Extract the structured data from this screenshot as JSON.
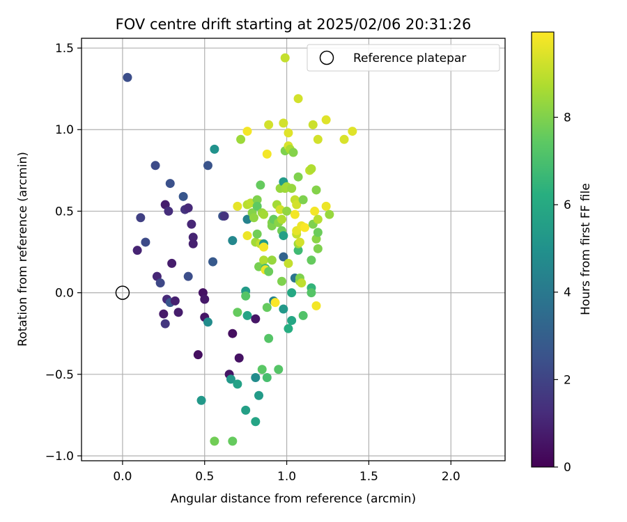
{
  "chart_data": {
    "type": "scatter",
    "title": "FOV centre drift starting at 2025/02/06 20:31:26",
    "xlabel": "Angular distance from reference (arcmin)",
    "ylabel": "Rotation from reference (arcmin)",
    "xlim": [
      -0.25,
      2.33
    ],
    "ylim": [
      -1.03,
      1.56
    ],
    "xticks": [
      0.0,
      0.5,
      1.0,
      1.5,
      2.0
    ],
    "xtick_labels": [
      "0.0",
      "0.5",
      "1.0",
      "1.5",
      "2.0"
    ],
    "yticks": [
      -1.0,
      -0.5,
      0.0,
      0.5,
      1.0,
      1.5
    ],
    "ytick_labels": [
      "−1.0",
      "−0.5",
      "0.0",
      "0.5",
      "1.0",
      "1.5"
    ],
    "grid": true,
    "legend": {
      "position": "top-right",
      "entries": [
        {
          "label": "Reference platepar",
          "marker": "open-circle"
        }
      ]
    },
    "reference_point": {
      "x": 0.0,
      "y": 0.0
    },
    "colorbar": {
      "label": "Hours from first FF file",
      "colormap": "viridis",
      "range": [
        0,
        9.95
      ],
      "ticks": [
        0,
        2,
        4,
        6,
        8
      ],
      "tick_labels": [
        "0",
        "2",
        "4",
        "6",
        "8"
      ]
    },
    "points": [
      {
        "x": 0.03,
        "y": 1.32,
        "c": 2.4
      },
      {
        "x": 0.09,
        "y": 0.26,
        "c": 1.0
      },
      {
        "x": 0.11,
        "y": 0.46,
        "c": 1.9
      },
      {
        "x": 0.14,
        "y": 0.31,
        "c": 2.3
      },
      {
        "x": 0.2,
        "y": 0.78,
        "c": 2.3
      },
      {
        "x": 0.21,
        "y": 0.1,
        "c": 1.1
      },
      {
        "x": 0.23,
        "y": 0.06,
        "c": 2.2
      },
      {
        "x": 0.25,
        "y": -0.13,
        "c": 0.7
      },
      {
        "x": 0.26,
        "y": -0.19,
        "c": 1.6
      },
      {
        "x": 0.26,
        "y": 0.54,
        "c": 0.8
      },
      {
        "x": 0.27,
        "y": -0.04,
        "c": 1.2
      },
      {
        "x": 0.28,
        "y": 0.5,
        "c": 1.3
      },
      {
        "x": 0.29,
        "y": -0.06,
        "c": 2.7
      },
      {
        "x": 0.29,
        "y": 0.67,
        "c": 2.5
      },
      {
        "x": 0.3,
        "y": 0.18,
        "c": 0.8
      },
      {
        "x": 0.32,
        "y": -0.05,
        "c": 0.9
      },
      {
        "x": 0.34,
        "y": -0.12,
        "c": 0.8
      },
      {
        "x": 0.37,
        "y": 0.59,
        "c": 2.7
      },
      {
        "x": 0.38,
        "y": 0.51,
        "c": 1.5
      },
      {
        "x": 0.4,
        "y": 0.1,
        "c": 2.4
      },
      {
        "x": 0.4,
        "y": 0.52,
        "c": 1.2
      },
      {
        "x": 0.42,
        "y": 0.42,
        "c": 1.1
      },
      {
        "x": 0.43,
        "y": 0.34,
        "c": 1.0
      },
      {
        "x": 0.43,
        "y": 0.3,
        "c": 0.9
      },
      {
        "x": 0.46,
        "y": -0.38,
        "c": 0.4
      },
      {
        "x": 0.49,
        "y": 0.0,
        "c": 0.5
      },
      {
        "x": 0.5,
        "y": -0.04,
        "c": 0.7
      },
      {
        "x": 0.5,
        "y": -0.15,
        "c": 0.6
      },
      {
        "x": 0.52,
        "y": 0.78,
        "c": 2.6
      },
      {
        "x": 0.52,
        "y": -0.18,
        "c": 4.8
      },
      {
        "x": 0.55,
        "y": 0.19,
        "c": 2.8
      },
      {
        "x": 0.48,
        "y": -0.66,
        "c": 5.3
      },
      {
        "x": 0.56,
        "y": 0.88,
        "c": 5.0
      },
      {
        "x": 0.56,
        "y": -0.91,
        "c": 7.8
      },
      {
        "x": 0.61,
        "y": 0.47,
        "c": 2.6
      },
      {
        "x": 0.62,
        "y": 0.47,
        "c": 1.5
      },
      {
        "x": 0.65,
        "y": -0.5,
        "c": 0.6
      },
      {
        "x": 0.66,
        "y": -0.53,
        "c": 5.3
      },
      {
        "x": 0.67,
        "y": -0.91,
        "c": 7.6
      },
      {
        "x": 0.67,
        "y": 0.32,
        "c": 4.6
      },
      {
        "x": 0.67,
        "y": -0.25,
        "c": 0.4
      },
      {
        "x": 0.7,
        "y": -0.12,
        "c": 7.6
      },
      {
        "x": 0.7,
        "y": 0.53,
        "c": 9.6
      },
      {
        "x": 0.7,
        "y": -0.56,
        "c": 5.7
      },
      {
        "x": 0.71,
        "y": -0.4,
        "c": 0.5
      },
      {
        "x": 0.72,
        "y": 0.94,
        "c": 8.5
      },
      {
        "x": 0.75,
        "y": 0.01,
        "c": 5.4
      },
      {
        "x": 0.75,
        "y": -0.02,
        "c": 7.3
      },
      {
        "x": 0.75,
        "y": -0.72,
        "c": 5.6
      },
      {
        "x": 0.76,
        "y": 0.45,
        "c": 4.4
      },
      {
        "x": 0.76,
        "y": 0.54,
        "c": 8.9
      },
      {
        "x": 0.76,
        "y": 0.35,
        "c": 9.7
      },
      {
        "x": 0.76,
        "y": -0.14,
        "c": 5.8
      },
      {
        "x": 0.76,
        "y": 0.99,
        "c": 9.8
      },
      {
        "x": 0.78,
        "y": 0.55,
        "c": 9.0
      },
      {
        "x": 0.79,
        "y": 0.49,
        "c": 8.1
      },
      {
        "x": 0.8,
        "y": 0.46,
        "c": 8.3
      },
      {
        "x": 0.81,
        "y": -0.16,
        "c": 0.6
      },
      {
        "x": 0.81,
        "y": 0.31,
        "c": 8.6
      },
      {
        "x": 0.81,
        "y": -0.52,
        "c": 4.8
      },
      {
        "x": 0.81,
        "y": -0.79,
        "c": 5.8
      },
      {
        "x": 0.82,
        "y": 0.57,
        "c": 8.0
      },
      {
        "x": 0.82,
        "y": 0.36,
        "c": 7.8
      },
      {
        "x": 0.82,
        "y": 0.53,
        "c": 7.5
      },
      {
        "x": 0.83,
        "y": -0.63,
        "c": 5.4
      },
      {
        "x": 0.83,
        "y": 0.16,
        "c": 7.9
      },
      {
        "x": 0.84,
        "y": 0.66,
        "c": 7.6
      },
      {
        "x": 0.84,
        "y": 0.3,
        "c": 9.0
      },
      {
        "x": 0.85,
        "y": 0.49,
        "c": 8.4
      },
      {
        "x": 0.85,
        "y": -0.47,
        "c": 7.4
      },
      {
        "x": 0.86,
        "y": 0.3,
        "c": 5.4
      },
      {
        "x": 0.86,
        "y": 0.28,
        "c": 9.8
      },
      {
        "x": 0.86,
        "y": 0.48,
        "c": 8.6
      },
      {
        "x": 0.86,
        "y": 0.2,
        "c": 8.8
      },
      {
        "x": 0.87,
        "y": 0.15,
        "c": 6.9
      },
      {
        "x": 0.87,
        "y": 0.14,
        "c": 9.7
      },
      {
        "x": 0.88,
        "y": -0.09,
        "c": 7.6
      },
      {
        "x": 0.88,
        "y": 0.85,
        "c": 9.8
      },
      {
        "x": 0.88,
        "y": -0.52,
        "c": 7.0
      },
      {
        "x": 0.89,
        "y": 1.03,
        "c": 9.3
      },
      {
        "x": 0.89,
        "y": -0.28,
        "c": 7.3
      },
      {
        "x": 0.89,
        "y": 0.13,
        "c": 7.7
      },
      {
        "x": 0.91,
        "y": 0.2,
        "c": 8.4
      },
      {
        "x": 0.91,
        "y": 0.43,
        "c": 8.1
      },
      {
        "x": 0.91,
        "y": 0.41,
        "c": 8.0
      },
      {
        "x": 0.92,
        "y": -0.05,
        "c": 4.4
      },
      {
        "x": 0.92,
        "y": 0.45,
        "c": 7.6
      },
      {
        "x": 0.93,
        "y": -0.06,
        "c": 9.9
      },
      {
        "x": 0.94,
        "y": 0.54,
        "c": 8.6
      },
      {
        "x": 0.95,
        "y": -0.47,
        "c": 7.3
      },
      {
        "x": 0.95,
        "y": 0.43,
        "c": 8.2
      },
      {
        "x": 0.96,
        "y": 0.64,
        "c": 8.4
      },
      {
        "x": 0.96,
        "y": 0.51,
        "c": 9.3
      },
      {
        "x": 0.97,
        "y": 0.45,
        "c": 8.8
      },
      {
        "x": 0.97,
        "y": 0.38,
        "c": 7.8
      },
      {
        "x": 0.97,
        "y": 0.07,
        "c": 8.0
      },
      {
        "x": 0.98,
        "y": 1.04,
        "c": 9.3
      },
      {
        "x": 0.98,
        "y": 0.68,
        "c": 5.4
      },
      {
        "x": 0.98,
        "y": 0.35,
        "c": 5.6
      },
      {
        "x": 0.98,
        "y": 0.22,
        "c": 3.2
      },
      {
        "x": 0.98,
        "y": -0.1,
        "c": 5.3
      },
      {
        "x": 0.99,
        "y": 1.44,
        "c": 9.1
      },
      {
        "x": 0.99,
        "y": 0.87,
        "c": 8.0
      },
      {
        "x": 0.99,
        "y": 0.64,
        "c": 8.5
      },
      {
        "x": 1.0,
        "y": 0.5,
        "c": 8.3
      },
      {
        "x": 1.0,
        "y": 0.65,
        "c": 8.6
      },
      {
        "x": 1.01,
        "y": 0.9,
        "c": 9.4
      },
      {
        "x": 1.01,
        "y": 0.18,
        "c": 9.1
      },
      {
        "x": 1.01,
        "y": -0.22,
        "c": 6.2
      },
      {
        "x": 1.01,
        "y": 0.98,
        "c": 9.5
      },
      {
        "x": 1.02,
        "y": 0.88,
        "c": 8.7
      },
      {
        "x": 1.03,
        "y": -0.17,
        "c": 5.9
      },
      {
        "x": 1.03,
        "y": 0.0,
        "c": 6.0
      },
      {
        "x": 1.03,
        "y": 0.64,
        "c": 8.4
      },
      {
        "x": 1.04,
        "y": 0.86,
        "c": 8.1
      },
      {
        "x": 1.05,
        "y": 0.09,
        "c": 3.9
      },
      {
        "x": 1.05,
        "y": 0.48,
        "c": 9.8
      },
      {
        "x": 1.05,
        "y": 0.57,
        "c": 9.1
      },
      {
        "x": 1.06,
        "y": 0.36,
        "c": 9.1
      },
      {
        "x": 1.06,
        "y": 0.54,
        "c": 9.3
      },
      {
        "x": 1.06,
        "y": 0.38,
        "c": 9.6
      },
      {
        "x": 1.07,
        "y": 0.26,
        "c": 6.8
      },
      {
        "x": 1.07,
        "y": 0.3,
        "c": 8.5
      },
      {
        "x": 1.07,
        "y": 1.19,
        "c": 9.3
      },
      {
        "x": 1.07,
        "y": 0.71,
        "c": 8.0
      },
      {
        "x": 1.08,
        "y": 0.07,
        "c": 8.6
      },
      {
        "x": 1.08,
        "y": 0.09,
        "c": 8.0
      },
      {
        "x": 1.08,
        "y": 0.31,
        "c": 9.3
      },
      {
        "x": 1.09,
        "y": 0.06,
        "c": 9.0
      },
      {
        "x": 1.09,
        "y": 0.41,
        "c": 9.7
      },
      {
        "x": 1.1,
        "y": 0.57,
        "c": 8.0
      },
      {
        "x": 1.1,
        "y": -0.14,
        "c": 7.2
      },
      {
        "x": 1.11,
        "y": 0.4,
        "c": 9.9
      },
      {
        "x": 1.14,
        "y": 0.75,
        "c": 9.0
      },
      {
        "x": 1.15,
        "y": 0.76,
        "c": 8.8
      },
      {
        "x": 1.15,
        "y": 0.2,
        "c": 7.6
      },
      {
        "x": 1.15,
        "y": 0.03,
        "c": 6.5
      },
      {
        "x": 1.15,
        "y": 0.0,
        "c": 7.3
      },
      {
        "x": 1.16,
        "y": 1.03,
        "c": 9.2
      },
      {
        "x": 1.16,
        "y": 0.42,
        "c": 8.0
      },
      {
        "x": 1.17,
        "y": 0.5,
        "c": 9.8
      },
      {
        "x": 1.18,
        "y": 0.63,
        "c": 8.1
      },
      {
        "x": 1.18,
        "y": 0.33,
        "c": 8.2
      },
      {
        "x": 1.18,
        "y": -0.08,
        "c": 9.8
      },
      {
        "x": 1.19,
        "y": 0.37,
        "c": 7.7
      },
      {
        "x": 1.19,
        "y": 0.45,
        "c": 8.9
      },
      {
        "x": 1.19,
        "y": 0.27,
        "c": 8.0
      },
      {
        "x": 1.19,
        "y": 0.94,
        "c": 9.3
      },
      {
        "x": 1.24,
        "y": 0.53,
        "c": 9.7
      },
      {
        "x": 1.24,
        "y": 1.06,
        "c": 9.5
      },
      {
        "x": 1.26,
        "y": 0.48,
        "c": 8.4
      },
      {
        "x": 1.35,
        "y": 0.94,
        "c": 9.4
      },
      {
        "x": 1.4,
        "y": 0.99,
        "c": 9.5
      }
    ]
  }
}
